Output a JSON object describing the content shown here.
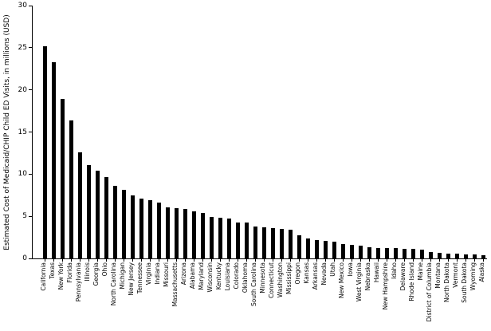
{
  "chart_data": {
    "type": "bar",
    "title": "",
    "xlabel": "",
    "ylabel": "Estimated Cost of Medicaid/CHIP Child ED Visits, in millions (USD)",
    "ylim": [
      0,
      30
    ],
    "yticks": [
      0,
      5,
      10,
      15,
      20,
      25,
      30
    ],
    "grid": false,
    "legend": false,
    "bar_color": "#000000",
    "background_color": "#ffffff",
    "categories": [
      "California",
      "Texas",
      "New York",
      "Florida",
      "Pennsylvania",
      "Illinois",
      "Georgia",
      "Ohio",
      "North Carolina",
      "Michigan",
      "New Jersey",
      "Tennessee",
      "Virginia",
      "Indiana",
      "Missouri",
      "Massachusetts",
      "Arizona",
      "Alabama",
      "Maryland",
      "Wisconsin",
      "Kentucky",
      "Louisiana",
      "Colorado",
      "Oklahoma",
      "South Carolina",
      "Minnesota",
      "Connecticut",
      "Washington",
      "Mississippi",
      "Oregon",
      "Kansas",
      "Arkansas",
      "Nevada",
      "Utah",
      "New Mexico",
      "Iowa",
      "West Virginia",
      "Nebraska",
      "Hawaii",
      "New Hampshire",
      "Idaho",
      "Delaware",
      "Rhode Island",
      "Maine",
      "District of Columbia",
      "Montana",
      "North Dakota",
      "Vermont",
      "South Dakota",
      "Wyoming",
      "Alaska"
    ],
    "values": [
      25.2,
      23.3,
      18.9,
      16.4,
      12.6,
      11.1,
      10.4,
      9.7,
      8.6,
      8.1,
      7.5,
      7.1,
      6.9,
      6.6,
      6.1,
      6.0,
      5.9,
      5.6,
      5.4,
      4.9,
      4.8,
      4.7,
      4.3,
      4.3,
      3.8,
      3.7,
      3.6,
      3.5,
      3.4,
      2.7,
      2.4,
      2.2,
      2.1,
      2.0,
      1.7,
      1.6,
      1.5,
      1.3,
      1.25,
      1.2,
      1.2,
      1.15,
      1.1,
      1.0,
      0.75,
      0.7,
      0.6,
      0.55,
      0.5,
      0.45,
      0.35
    ]
  }
}
